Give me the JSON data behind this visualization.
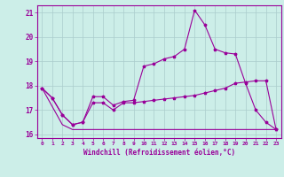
{
  "xlabel": "Windchill (Refroidissement éolien,°C)",
  "background_color": "#cceee8",
  "line_color": "#990099",
  "grid_color": "#aacccc",
  "xlim": [
    -0.5,
    23.5
  ],
  "ylim": [
    15.85,
    21.3
  ],
  "yticks": [
    16,
    17,
    18,
    19,
    20,
    21
  ],
  "xticks": [
    0,
    1,
    2,
    3,
    4,
    5,
    6,
    7,
    8,
    9,
    10,
    11,
    12,
    13,
    14,
    15,
    16,
    17,
    18,
    19,
    20,
    21,
    22,
    23
  ],
  "series1_x": [
    0,
    1,
    2,
    3,
    4,
    5,
    6,
    7,
    8,
    9,
    10,
    11,
    12,
    13,
    14,
    15,
    16,
    17,
    18,
    19,
    20,
    21,
    22,
    23
  ],
  "series1_y": [
    17.9,
    17.5,
    16.8,
    16.4,
    16.5,
    17.55,
    17.55,
    17.2,
    17.35,
    17.4,
    18.8,
    18.9,
    19.1,
    19.2,
    19.5,
    21.1,
    20.5,
    19.5,
    19.35,
    19.3,
    18.1,
    17.0,
    16.5,
    16.2
  ],
  "series2_x": [
    0,
    1,
    2,
    3,
    4,
    5,
    6,
    7,
    8,
    9,
    10,
    11,
    12,
    13,
    14,
    15,
    16,
    17,
    18,
    19,
    20,
    21,
    22,
    23
  ],
  "series2_y": [
    17.9,
    17.5,
    16.8,
    16.4,
    16.5,
    17.3,
    17.3,
    17.0,
    17.3,
    17.3,
    17.35,
    17.4,
    17.45,
    17.5,
    17.55,
    17.6,
    17.7,
    17.8,
    17.9,
    18.1,
    18.15,
    18.2,
    18.2,
    16.2
  ],
  "series3_x": [
    0,
    2,
    3,
    23
  ],
  "series3_y": [
    17.9,
    16.4,
    16.2,
    16.2
  ]
}
